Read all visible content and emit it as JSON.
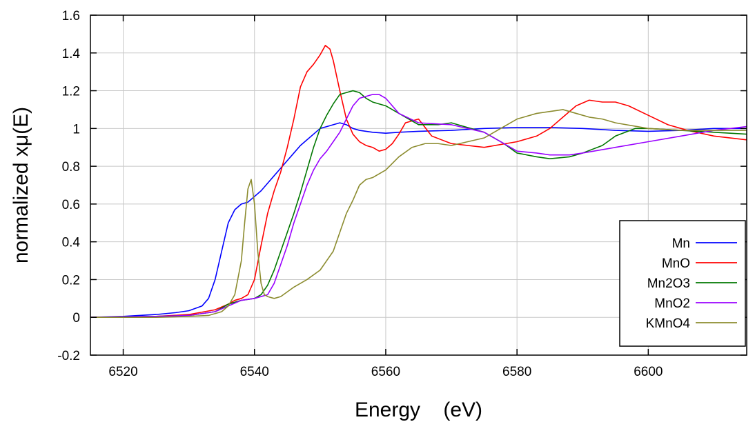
{
  "chart_data": {
    "type": "line",
    "title": "",
    "xlabel": "Energy    (eV)",
    "ylabel": "normalized xμ(E)",
    "xlim": [
      6515,
      6615
    ],
    "ylim": [
      -0.2,
      1.6
    ],
    "xticks": [
      6520,
      6540,
      6560,
      6580,
      6600
    ],
    "yticks": [
      -0.2,
      0,
      0.2,
      0.4,
      0.6,
      0.8,
      1,
      1.2,
      1.4,
      1.6
    ],
    "ytick_labels": [
      "-0.2",
      "0",
      "0.2",
      "0.4",
      "0.6",
      "0.8",
      "1",
      "1.2",
      "1.4",
      "1.6"
    ],
    "grid": true,
    "legend_position": "bottom-right",
    "series": [
      {
        "name": "Mn",
        "color": "#0000ff",
        "x": [
          6515,
          6520,
          6525,
          6528,
          6530,
          6532,
          6533,
          6534,
          6535,
          6536,
          6537,
          6538,
          6539,
          6540,
          6541,
          6542,
          6543,
          6544,
          6545,
          6546,
          6547,
          6548,
          6549,
          6550,
          6551,
          6552,
          6553,
          6554,
          6555,
          6556,
          6558,
          6560,
          6562,
          6565,
          6570,
          6575,
          6580,
          6585,
          6590,
          6595,
          6600,
          6605,
          6610,
          6615
        ],
        "y": [
          0.0,
          0.005,
          0.015,
          0.025,
          0.035,
          0.06,
          0.1,
          0.2,
          0.35,
          0.5,
          0.57,
          0.6,
          0.61,
          0.64,
          0.67,
          0.71,
          0.75,
          0.79,
          0.83,
          0.87,
          0.91,
          0.94,
          0.97,
          1.0,
          1.01,
          1.02,
          1.03,
          1.02,
          1.0,
          0.99,
          0.98,
          0.975,
          0.98,
          0.985,
          0.99,
          1.0,
          1.005,
          1.005,
          1.0,
          0.99,
          0.985,
          0.99,
          1.0,
          1.0
        ]
      },
      {
        "name": "MnO",
        "color": "#ff0000",
        "x": [
          6515,
          6525,
          6530,
          6534,
          6536,
          6537,
          6538,
          6539,
          6540,
          6541,
          6542,
          6543,
          6544,
          6545,
          6546,
          6547,
          6548,
          6549,
          6550,
          6550.8,
          6551.5,
          6552,
          6553,
          6554,
          6555,
          6556,
          6557,
          6558,
          6559,
          6560,
          6561,
          6562,
          6563,
          6565,
          6567,
          6570,
          6575,
          6580,
          6583,
          6585,
          6587,
          6589,
          6591,
          6593,
          6595,
          6597,
          6600,
          6603,
          6606,
          6610,
          6615
        ],
        "y": [
          0.0,
          0.005,
          0.015,
          0.04,
          0.07,
          0.09,
          0.1,
          0.12,
          0.2,
          0.38,
          0.55,
          0.67,
          0.77,
          0.9,
          1.05,
          1.22,
          1.3,
          1.34,
          1.39,
          1.44,
          1.42,
          1.36,
          1.2,
          1.05,
          0.97,
          0.93,
          0.91,
          0.9,
          0.88,
          0.89,
          0.92,
          0.97,
          1.03,
          1.05,
          0.96,
          0.92,
          0.9,
          0.93,
          0.96,
          1.0,
          1.06,
          1.12,
          1.15,
          1.14,
          1.14,
          1.12,
          1.07,
          1.02,
          0.99,
          0.96,
          0.94
        ]
      },
      {
        "name": "Mn2O3",
        "color": "#007700",
        "x": [
          6515,
          6525,
          6530,
          6534,
          6536,
          6537,
          6538,
          6540,
          6541,
          6542,
          6543,
          6544,
          6545,
          6546,
          6547,
          6548,
          6549,
          6550,
          6551,
          6552,
          6553,
          6554,
          6555,
          6556,
          6557,
          6558,
          6560,
          6562,
          6565,
          6568,
          6570,
          6572,
          6575,
          6578,
          6580,
          6583,
          6585,
          6588,
          6590,
          6593,
          6595,
          6598,
          6600,
          6605,
          6610,
          6615
        ],
        "y": [
          0.0,
          0.005,
          0.01,
          0.03,
          0.07,
          0.08,
          0.09,
          0.1,
          0.12,
          0.17,
          0.25,
          0.35,
          0.45,
          0.55,
          0.66,
          0.78,
          0.9,
          1.0,
          1.07,
          1.13,
          1.18,
          1.19,
          1.2,
          1.19,
          1.16,
          1.14,
          1.12,
          1.08,
          1.02,
          1.02,
          1.03,
          1.01,
          0.98,
          0.92,
          0.87,
          0.85,
          0.84,
          0.85,
          0.87,
          0.91,
          0.96,
          1.0,
          1.0,
          0.99,
          0.98,
          0.97
        ]
      },
      {
        "name": "MnO2",
        "color": "#9900ff",
        "x": [
          6515,
          6525,
          6530,
          6534,
          6536,
          6538,
          6540,
          6542,
          6543,
          6544,
          6545,
          6546,
          6547,
          6548,
          6549,
          6550,
          6551,
          6552,
          6553,
          6554,
          6555,
          6556,
          6557,
          6558,
          6559,
          6560,
          6562,
          6565,
          6570,
          6575,
          6578,
          6580,
          6583,
          6585,
          6588,
          6590,
          6595,
          6600,
          6605,
          6610,
          6615
        ],
        "y": [
          0.0,
          0.005,
          0.01,
          0.03,
          0.06,
          0.09,
          0.1,
          0.12,
          0.18,
          0.28,
          0.38,
          0.5,
          0.6,
          0.7,
          0.78,
          0.84,
          0.88,
          0.93,
          0.98,
          1.05,
          1.12,
          1.16,
          1.17,
          1.18,
          1.18,
          1.16,
          1.08,
          1.03,
          1.02,
          0.98,
          0.92,
          0.88,
          0.87,
          0.86,
          0.86,
          0.87,
          0.9,
          0.93,
          0.96,
          0.99,
          1.01
        ]
      },
      {
        "name": "KMnO4",
        "color": "#8b8b2e",
        "x": [
          6515,
          6525,
          6530,
          6533,
          6535,
          6536,
          6537,
          6538,
          6538.5,
          6539,
          6539.5,
          6540,
          6540.5,
          6541,
          6541.5,
          6542,
          6543,
          6544,
          6546,
          6548,
          6550,
          6551,
          6552,
          6553,
          6554,
          6555,
          6556,
          6557,
          6558,
          6559,
          6560,
          6562,
          6564,
          6566,
          6568,
          6570,
          6575,
          6580,
          6583,
          6585,
          6587,
          6589,
          6591,
          6593,
          6595,
          6600,
          6605,
          6610,
          6615
        ],
        "y": [
          0.0,
          0.0,
          0.005,
          0.01,
          0.03,
          0.06,
          0.12,
          0.3,
          0.5,
          0.68,
          0.73,
          0.6,
          0.35,
          0.18,
          0.12,
          0.11,
          0.1,
          0.11,
          0.16,
          0.2,
          0.25,
          0.3,
          0.35,
          0.45,
          0.55,
          0.62,
          0.7,
          0.73,
          0.74,
          0.76,
          0.78,
          0.85,
          0.9,
          0.92,
          0.92,
          0.91,
          0.95,
          1.05,
          1.08,
          1.09,
          1.1,
          1.08,
          1.06,
          1.05,
          1.03,
          1.0,
          0.99,
          0.99,
          0.99
        ]
      }
    ]
  }
}
